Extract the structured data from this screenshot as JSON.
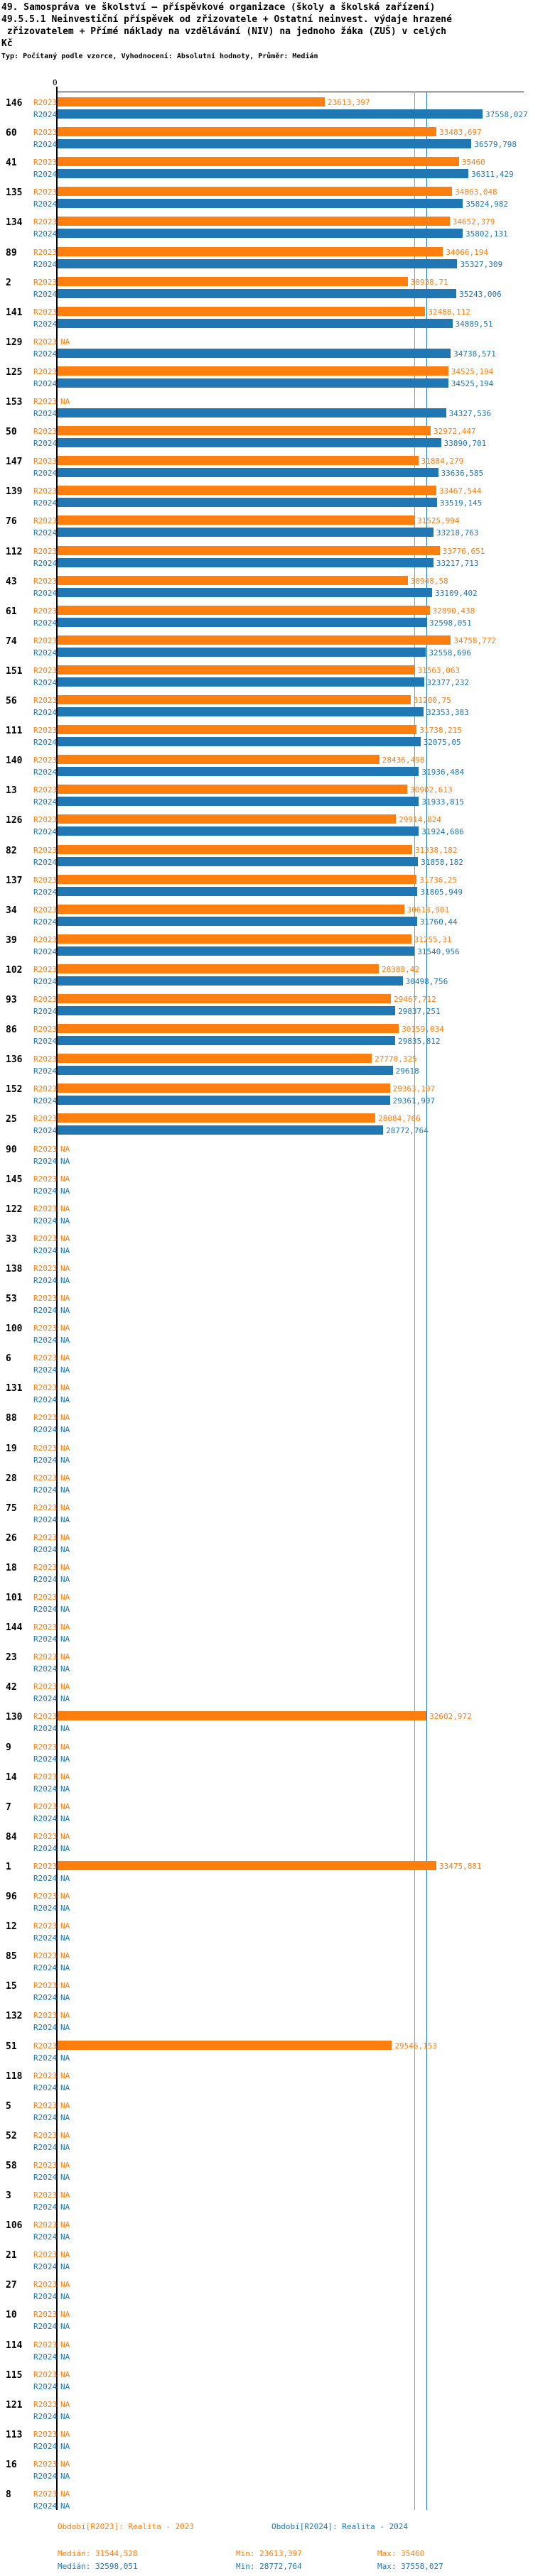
{
  "title": {
    "line1": "49. Samospráva ve školství – příspěvkové organizace (školy a školská zařízení)",
    "line2": "49.5.5.1 Neinvestiční příspěvek od zřizovatele + Ostatní neinvest. výdaje hrazené",
    "line3": " zřizovatelem + Přímé náklady na vzdělávání (NIV) na jednoho žáka (ZUŠ) v celých",
    "line4": "Kč"
  },
  "subtitle": "Typ: Počítaný podle vzorce, Vyhodnocení: Absolutní hodnoty, Průměr: Medián",
  "colors": {
    "r2023": "#ff7f0e",
    "r2024": "#1f77b4",
    "axis": "#000000"
  },
  "axis": {
    "zero_label": "0"
  },
  "series_labels": {
    "r2023": "R2023",
    "r2024": "R2024"
  },
  "na_label": "NA",
  "chart_data": {
    "type": "bar",
    "orientation": "horizontal",
    "xlim": [
      0,
      37558.027
    ],
    "medians": {
      "r2023": 31544.528,
      "r2024": 32598.051
    },
    "legend": [
      "Období[R2023]: Realita - 2023",
      "Období[R2024]: Realita - 2024"
    ],
    "rows": [
      {
        "id": "146",
        "r2023": "23613,397",
        "r2024": "37558,027"
      },
      {
        "id": "60",
        "r2023": "33483,697",
        "r2024": "36579,798"
      },
      {
        "id": "41",
        "r2023": "35460",
        "r2024": "36311,429"
      },
      {
        "id": "135",
        "r2023": "34863,048",
        "r2024": "35824,982"
      },
      {
        "id": "134",
        "r2023": "34652,379",
        "r2024": "35802,131"
      },
      {
        "id": "89",
        "r2023": "34066,194",
        "r2024": "35327,309"
      },
      {
        "id": "2",
        "r2023": "30938,71",
        "r2024": "35243,006"
      },
      {
        "id": "141",
        "r2023": "32488,112",
        "r2024": "34889,51"
      },
      {
        "id": "129",
        "r2023": "NA",
        "r2024": "34738,571"
      },
      {
        "id": "125",
        "r2023": "34525,194",
        "r2024": "34525,194"
      },
      {
        "id": "153",
        "r2023": "NA",
        "r2024": "34327,536"
      },
      {
        "id": "50",
        "r2023": "32972,447",
        "r2024": "33890,701"
      },
      {
        "id": "147",
        "r2023": "31884,279",
        "r2024": "33636,585"
      },
      {
        "id": "139",
        "r2023": "33467,544",
        "r2024": "33519,145"
      },
      {
        "id": "76",
        "r2023": "31525,994",
        "r2024": "33218,763"
      },
      {
        "id": "112",
        "r2023": "33776,651",
        "r2024": "33217,713"
      },
      {
        "id": "43",
        "r2023": "30948,58",
        "r2024": "33109,402"
      },
      {
        "id": "61",
        "r2023": "32890,438",
        "r2024": "32598,051"
      },
      {
        "id": "74",
        "r2023": "34758,772",
        "r2024": "32558,696"
      },
      {
        "id": "151",
        "r2023": "31563,063",
        "r2024": "32377,232"
      },
      {
        "id": "56",
        "r2023": "31200,75",
        "r2024": "32353,383"
      },
      {
        "id": "111",
        "r2023": "31738,215",
        "r2024": "32075,05"
      },
      {
        "id": "140",
        "r2023": "28436,498",
        "r2024": "31936,484"
      },
      {
        "id": "13",
        "r2023": "30902,613",
        "r2024": "31933,815"
      },
      {
        "id": "126",
        "r2023": "29914,824",
        "r2024": "31924,686"
      },
      {
        "id": "82",
        "r2023": "31338,182",
        "r2024": "31858,182"
      },
      {
        "id": "137",
        "r2023": "31736,25",
        "r2024": "31805,949"
      },
      {
        "id": "34",
        "r2023": "30618,901",
        "r2024": "31760,44"
      },
      {
        "id": "39",
        "r2023": "31255,31",
        "r2024": "31540,956"
      },
      {
        "id": "102",
        "r2023": "28388,42",
        "r2024": "30498,756"
      },
      {
        "id": "93",
        "r2023": "29467,712",
        "r2024": "29837,251"
      },
      {
        "id": "86",
        "r2023": "30159,034",
        "r2024": "29835,812"
      },
      {
        "id": "136",
        "r2023": "27770,325",
        "r2024": "29618"
      },
      {
        "id": "152",
        "r2023": "29363,107",
        "r2024": "29361,907"
      },
      {
        "id": "25",
        "r2023": "28084,766",
        "r2024": "28772,764"
      },
      {
        "id": "90",
        "r2023": "NA",
        "r2024": "NA"
      },
      {
        "id": "145",
        "r2023": "NA",
        "r2024": "NA"
      },
      {
        "id": "122",
        "r2023": "NA",
        "r2024": "NA"
      },
      {
        "id": "33",
        "r2023": "NA",
        "r2024": "NA"
      },
      {
        "id": "138",
        "r2023": "NA",
        "r2024": "NA"
      },
      {
        "id": "53",
        "r2023": "NA",
        "r2024": "NA"
      },
      {
        "id": "100",
        "r2023": "NA",
        "r2024": "NA"
      },
      {
        "id": "6",
        "r2023": "NA",
        "r2024": "NA"
      },
      {
        "id": "131",
        "r2023": "NA",
        "r2024": "NA"
      },
      {
        "id": "88",
        "r2023": "NA",
        "r2024": "NA"
      },
      {
        "id": "19",
        "r2023": "NA",
        "r2024": "NA"
      },
      {
        "id": "28",
        "r2023": "NA",
        "r2024": "NA"
      },
      {
        "id": "75",
        "r2023": "NA",
        "r2024": "NA"
      },
      {
        "id": "26",
        "r2023": "NA",
        "r2024": "NA"
      },
      {
        "id": "18",
        "r2023": "NA",
        "r2024": "NA"
      },
      {
        "id": "101",
        "r2023": "NA",
        "r2024": "NA"
      },
      {
        "id": "144",
        "r2023": "NA",
        "r2024": "NA"
      },
      {
        "id": "23",
        "r2023": "NA",
        "r2024": "NA"
      },
      {
        "id": "42",
        "r2023": "NA",
        "r2024": "NA"
      },
      {
        "id": "130",
        "r2023": "32602,972",
        "r2024": "NA"
      },
      {
        "id": "9",
        "r2023": "NA",
        "r2024": "NA"
      },
      {
        "id": "14",
        "r2023": "NA",
        "r2024": "NA"
      },
      {
        "id": "7",
        "r2023": "NA",
        "r2024": "NA"
      },
      {
        "id": "84",
        "r2023": "NA",
        "r2024": "NA"
      },
      {
        "id": "1",
        "r2023": "33475,881",
        "r2024": "NA"
      },
      {
        "id": "96",
        "r2023": "NA",
        "r2024": "NA"
      },
      {
        "id": "12",
        "r2023": "NA",
        "r2024": "NA"
      },
      {
        "id": "85",
        "r2023": "NA",
        "r2024": "NA"
      },
      {
        "id": "15",
        "r2023": "NA",
        "r2024": "NA"
      },
      {
        "id": "132",
        "r2023": "NA",
        "r2024": "NA"
      },
      {
        "id": "51",
        "r2023": "29546,153",
        "r2024": "NA"
      },
      {
        "id": "118",
        "r2023": "NA",
        "r2024": "NA"
      },
      {
        "id": "5",
        "r2023": "NA",
        "r2024": "NA"
      },
      {
        "id": "52",
        "r2023": "NA",
        "r2024": "NA"
      },
      {
        "id": "58",
        "r2023": "NA",
        "r2024": "NA"
      },
      {
        "id": "3",
        "r2023": "NA",
        "r2024": "NA"
      },
      {
        "id": "106",
        "r2023": "NA",
        "r2024": "NA"
      },
      {
        "id": "21",
        "r2023": "NA",
        "r2024": "NA"
      },
      {
        "id": "27",
        "r2023": "NA",
        "r2024": "NA"
      },
      {
        "id": "10",
        "r2023": "NA",
        "r2024": "NA"
      },
      {
        "id": "114",
        "r2023": "NA",
        "r2024": "NA"
      },
      {
        "id": "115",
        "r2023": "NA",
        "r2024": "NA"
      },
      {
        "id": "121",
        "r2023": "NA",
        "r2024": "NA"
      },
      {
        "id": "113",
        "r2023": "NA",
        "r2024": "NA"
      },
      {
        "id": "16",
        "r2023": "NA",
        "r2024": "NA"
      },
      {
        "id": "8",
        "r2023": "NA",
        "r2024": "NA"
      }
    ]
  },
  "footer": {
    "period2023": "Období[R2023]: Realita - 2023",
    "period2024": "Období[R2024]: Realita - 2024",
    "median2023": "Medián: 31544,528",
    "min2023": "Min: 23613,397",
    "max2023": "Max: 35460",
    "median2024": "Medián: 32598,051",
    "min2024": "Min: 28772,764",
    "max2024": "Max: 37558,027"
  }
}
